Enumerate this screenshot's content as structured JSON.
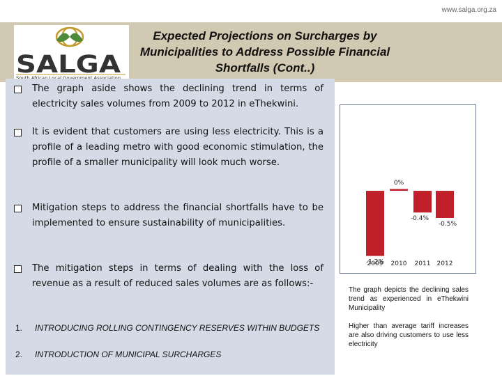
{
  "header": {
    "url": "www.salga.org.za",
    "title": "Expected Projections on Surcharges by Municipalities to Address Possible Financial Shortfalls (Cont..)"
  },
  "logo": {
    "name": "SALGA",
    "tagline": "South African Local Government Association",
    "colors": {
      "ring": "#c49a2a",
      "blue": "#2c5ea8",
      "green": "#4d8a3a",
      "text": "#333333"
    }
  },
  "bullets": [
    {
      "text": "The graph aside shows the declining trend in terms of electricity sales volumes from 2009 to 2012 in eThekwini."
    },
    {
      "text": "It is evident that customers are using less electricity. This is a profile of a leading metro with good economic stimulation, the profile of a smaller municipality will look much worse."
    },
    {
      "text": "Mitigation steps to address the financial shortfalls have to be implemented to ensure sustainability of municipalities."
    },
    {
      "text": "The mitigation steps in terms of dealing with the loss of revenue as a result of reduced sales volumes are as follows:-"
    }
  ],
  "numbered": [
    {
      "n": "1.",
      "text": "INTRODUCING ROLLING CONTINGENCY RESERVES WITHIN BUDGETS"
    },
    {
      "n": "2.",
      "text": "INTRODUCTION OF MUNICIPAL SURCHARGES"
    }
  ],
  "chart_data": {
    "type": "bar",
    "categories": [
      "2009",
      "2010",
      "2011",
      "2012"
    ],
    "values": [
      -1.2,
      0,
      -0.4,
      -0.5
    ],
    "data_labels": [
      "-1.2%",
      "0%",
      "-0.4%",
      "-0.5%"
    ],
    "ylim": [
      -1.4,
      0.2
    ],
    "bar_color": "#c0202a",
    "grid": false
  },
  "captions": [
    "The graph depicts the declining sales trend as experienced in eThekwini Municipality",
    "Higher than average tariff increases are also driving customers to use less electricity"
  ]
}
